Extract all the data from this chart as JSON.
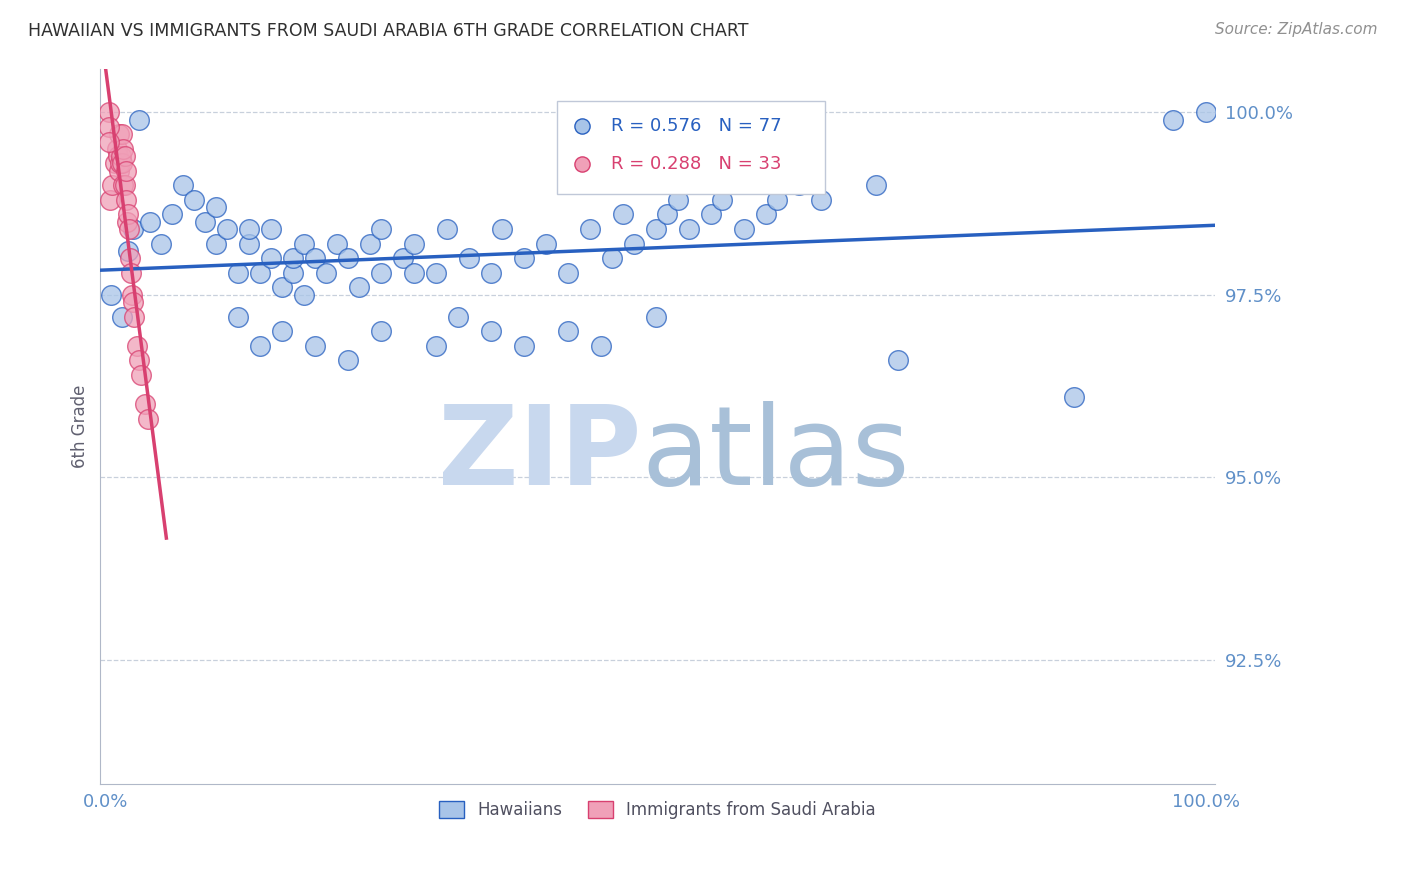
{
  "title": "HAWAIIAN VS IMMIGRANTS FROM SAUDI ARABIA 6TH GRADE CORRELATION CHART",
  "source": "Source: ZipAtlas.com",
  "ylabel": "6th Grade",
  "ytick_labels": [
    "100.0%",
    "97.5%",
    "95.0%",
    "92.5%"
  ],
  "ytick_values": [
    1.0,
    0.975,
    0.95,
    0.925
  ],
  "ymin": 0.908,
  "ymax": 1.006,
  "xmin": -0.005,
  "xmax": 1.008,
  "blue_color": "#A8C4E8",
  "pink_color": "#F0A0B8",
  "blue_line_color": "#2860C0",
  "pink_line_color": "#D84070",
  "watermark_zip_color": "#C8D8EE",
  "watermark_atlas_color": "#A8C0D8",
  "grid_color": "#C8D0DC",
  "title_color": "#303030",
  "tick_color": "#6090C8",
  "source_color": "#909090",
  "ylabel_color": "#606070",
  "hawaiians_x": [
    0.005,
    0.015,
    0.02,
    0.025,
    0.03,
    0.04,
    0.05,
    0.06,
    0.07,
    0.08,
    0.09,
    0.1,
    0.1,
    0.11,
    0.12,
    0.13,
    0.13,
    0.14,
    0.15,
    0.15,
    0.16,
    0.17,
    0.17,
    0.18,
    0.18,
    0.19,
    0.2,
    0.21,
    0.22,
    0.23,
    0.24,
    0.25,
    0.25,
    0.27,
    0.28,
    0.28,
    0.3,
    0.31,
    0.33,
    0.35,
    0.36,
    0.38,
    0.4,
    0.42,
    0.44,
    0.46,
    0.47,
    0.48,
    0.5,
    0.51,
    0.52,
    0.53,
    0.55,
    0.56,
    0.58,
    0.6,
    0.61,
    0.63,
    0.65,
    0.7,
    0.12,
    0.14,
    0.16,
    0.19,
    0.22,
    0.25,
    0.3,
    0.32,
    0.35,
    0.38,
    0.42,
    0.45,
    0.5,
    0.72,
    0.88,
    0.97,
    1.0
  ],
  "hawaiians_y": [
    0.975,
    0.972,
    0.981,
    0.984,
    0.999,
    0.985,
    0.982,
    0.986,
    0.99,
    0.988,
    0.985,
    0.982,
    0.987,
    0.984,
    0.978,
    0.982,
    0.984,
    0.978,
    0.984,
    0.98,
    0.976,
    0.978,
    0.98,
    0.975,
    0.982,
    0.98,
    0.978,
    0.982,
    0.98,
    0.976,
    0.982,
    0.978,
    0.984,
    0.98,
    0.978,
    0.982,
    0.978,
    0.984,
    0.98,
    0.978,
    0.984,
    0.98,
    0.982,
    0.978,
    0.984,
    0.98,
    0.986,
    0.982,
    0.984,
    0.986,
    0.988,
    0.984,
    0.986,
    0.988,
    0.984,
    0.986,
    0.988,
    0.99,
    0.988,
    0.99,
    0.972,
    0.968,
    0.97,
    0.968,
    0.966,
    0.97,
    0.968,
    0.972,
    0.97,
    0.968,
    0.97,
    0.968,
    0.972,
    0.966,
    0.961,
    0.999,
    1.0
  ],
  "saudi_x": [
    0.004,
    0.006,
    0.008,
    0.01,
    0.011,
    0.012,
    0.012,
    0.013,
    0.014,
    0.015,
    0.015,
    0.016,
    0.016,
    0.017,
    0.017,
    0.018,
    0.018,
    0.019,
    0.02,
    0.021,
    0.022,
    0.023,
    0.024,
    0.025,
    0.026,
    0.028,
    0.03,
    0.032,
    0.036,
    0.038,
    0.003,
    0.003,
    0.003
  ],
  "saudi_y": [
    0.988,
    0.99,
    0.993,
    0.995,
    0.994,
    0.992,
    0.997,
    0.993,
    0.994,
    0.993,
    0.997,
    0.99,
    0.995,
    0.99,
    0.994,
    0.988,
    0.992,
    0.985,
    0.986,
    0.984,
    0.98,
    0.978,
    0.975,
    0.974,
    0.972,
    0.968,
    0.966,
    0.964,
    0.96,
    0.958,
    1.0,
    0.998,
    0.996
  ]
}
